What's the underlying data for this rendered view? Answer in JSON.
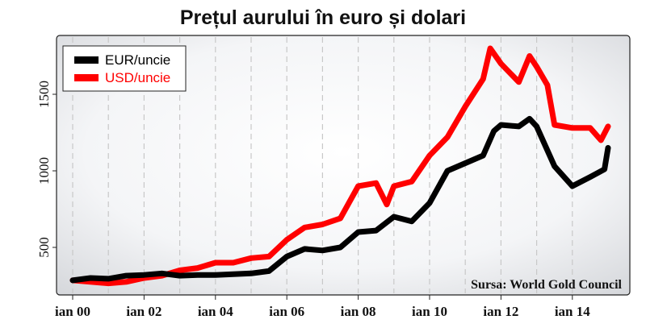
{
  "chart_data": {
    "type": "line",
    "title": "Prețul aurului în euro și dolari",
    "source": "Sursa: World Gold Council",
    "xlabel": "",
    "ylabel": "",
    "x_ticks": [
      "ian 00",
      "ian 02",
      "ian 04",
      "ian 06",
      "ian 08",
      "ian 10",
      "ian 12",
      "ian 14"
    ],
    "y_ticks": [
      500,
      1000,
      1500
    ],
    "xlim": [
      2000,
      2015
    ],
    "ylim": [
      300,
      1800
    ],
    "grid": true,
    "legend_position": "top-left",
    "series": [
      {
        "name": "EUR/uncie",
        "color": "#000000",
        "points": [
          [
            2000.0,
            285
          ],
          [
            2000.5,
            300
          ],
          [
            2001.0,
            295
          ],
          [
            2001.5,
            315
          ],
          [
            2002.0,
            320
          ],
          [
            2002.5,
            330
          ],
          [
            2003.0,
            315
          ],
          [
            2003.5,
            320
          ],
          [
            2004.0,
            320
          ],
          [
            2004.5,
            325
          ],
          [
            2005.0,
            330
          ],
          [
            2005.5,
            345
          ],
          [
            2006.0,
            440
          ],
          [
            2006.5,
            490
          ],
          [
            2007.0,
            480
          ],
          [
            2007.5,
            500
          ],
          [
            2008.0,
            600
          ],
          [
            2008.5,
            610
          ],
          [
            2009.0,
            700
          ],
          [
            2009.5,
            670
          ],
          [
            2010.0,
            790
          ],
          [
            2010.5,
            1000
          ],
          [
            2011.0,
            1050
          ],
          [
            2011.5,
            1100
          ],
          [
            2011.8,
            1260
          ],
          [
            2012.0,
            1300
          ],
          [
            2012.5,
            1290
          ],
          [
            2012.8,
            1340
          ],
          [
            2013.0,
            1290
          ],
          [
            2013.5,
            1030
          ],
          [
            2014.0,
            900
          ],
          [
            2014.5,
            960
          ],
          [
            2014.9,
            1010
          ],
          [
            2015.0,
            1150
          ]
        ]
      },
      {
        "name": "USD/uncie",
        "color": "#ff0000",
        "points": [
          [
            2000.0,
            285
          ],
          [
            2000.5,
            275
          ],
          [
            2001.0,
            265
          ],
          [
            2001.5,
            275
          ],
          [
            2002.0,
            300
          ],
          [
            2002.5,
            315
          ],
          [
            2003.0,
            350
          ],
          [
            2003.5,
            365
          ],
          [
            2004.0,
            400
          ],
          [
            2004.5,
            400
          ],
          [
            2005.0,
            430
          ],
          [
            2005.5,
            440
          ],
          [
            2006.0,
            550
          ],
          [
            2006.5,
            630
          ],
          [
            2007.0,
            650
          ],
          [
            2007.5,
            690
          ],
          [
            2008.0,
            900
          ],
          [
            2008.5,
            920
          ],
          [
            2008.8,
            780
          ],
          [
            2009.0,
            900
          ],
          [
            2009.5,
            930
          ],
          [
            2010.0,
            1100
          ],
          [
            2010.5,
            1220
          ],
          [
            2011.0,
            1420
          ],
          [
            2011.5,
            1600
          ],
          [
            2011.7,
            1800
          ],
          [
            2012.0,
            1700
          ],
          [
            2012.5,
            1580
          ],
          [
            2012.8,
            1750
          ],
          [
            2013.0,
            1680
          ],
          [
            2013.3,
            1560
          ],
          [
            2013.5,
            1300
          ],
          [
            2014.0,
            1280
          ],
          [
            2014.5,
            1280
          ],
          [
            2014.8,
            1200
          ],
          [
            2015.0,
            1290
          ]
        ]
      }
    ]
  }
}
